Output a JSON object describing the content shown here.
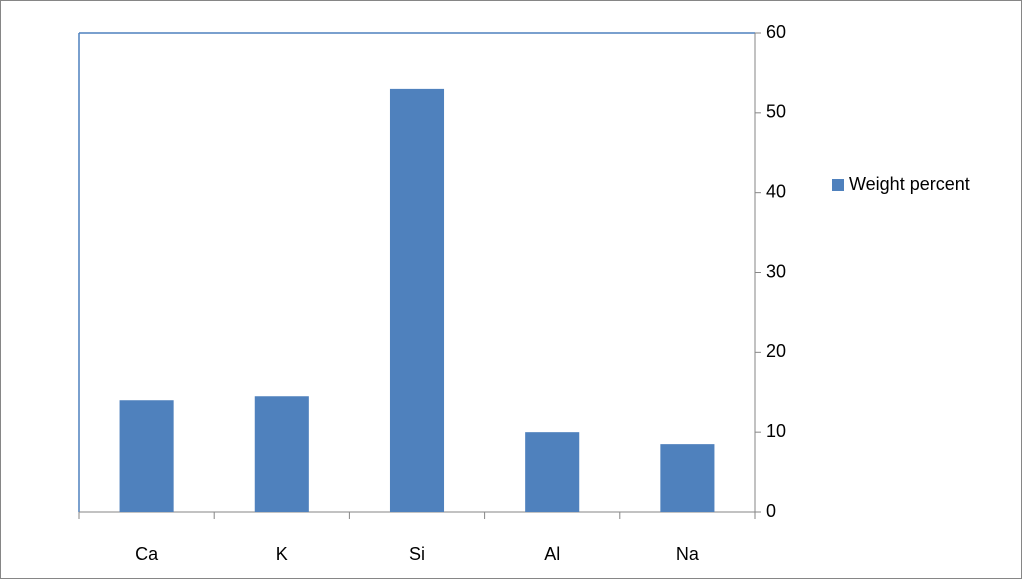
{
  "chart_data": {
    "type": "bar",
    "categories": [
      "Ca",
      "K",
      "Si",
      "Al",
      "Na"
    ],
    "series": [
      {
        "name": "Weight percent",
        "color": "#4f81bd",
        "values": [
          14,
          14.5,
          53,
          10,
          8.5
        ]
      }
    ],
    "ylim": [
      0,
      60
    ],
    "yticks": [
      0,
      10,
      20,
      30,
      40,
      50,
      60
    ],
    "y_axis_side": "right",
    "grid": false,
    "legend": "right"
  }
}
